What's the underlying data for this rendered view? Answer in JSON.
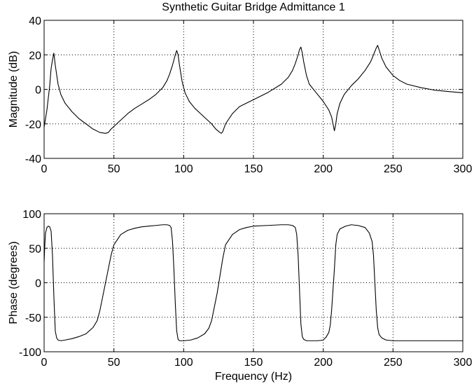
{
  "chart_data": [
    {
      "type": "line",
      "title": "Synthetic Guitar Bridge Admittance 1",
      "xlabel": "",
      "ylabel": "Magnitude (dB)",
      "xlim": [
        0,
        300
      ],
      "ylim": [
        -40,
        40
      ],
      "xticks": [
        "0",
        "50",
        "100",
        "150",
        "200",
        "250",
        "300"
      ],
      "yticks": [
        "-40",
        "-20",
        "0",
        "20",
        "40"
      ],
      "grid": true,
      "series": [
        {
          "x": [
            0,
            2,
            4,
            5,
            6,
            7,
            8,
            10,
            12,
            15,
            20,
            25,
            30,
            35,
            40,
            44,
            46,
            48,
            52,
            56,
            60,
            65,
            70,
            75,
            80,
            85,
            88,
            90,
            92,
            94,
            95,
            96,
            97,
            99,
            101,
            104,
            108,
            112,
            116,
            120,
            123,
            126,
            127,
            128,
            130,
            135,
            140,
            150,
            160,
            170,
            175,
            178,
            180,
            182,
            183,
            184,
            185,
            186,
            188,
            190,
            195,
            200,
            204,
            206,
            207,
            208,
            209,
            210,
            212,
            215,
            220,
            225,
            230,
            234,
            236,
            238,
            239,
            240,
            242,
            245,
            250,
            255,
            260,
            270,
            280,
            290,
            300
          ],
          "y": [
            -22,
            -12,
            2,
            12,
            17,
            21,
            14,
            3,
            -3,
            -8,
            -13,
            -17,
            -20,
            -23,
            -25,
            -25.5,
            -25,
            -23,
            -20,
            -17,
            -14,
            -11,
            -8.5,
            -6,
            -3,
            1,
            5,
            9,
            14,
            20,
            22.5,
            20,
            14,
            4,
            -2,
            -7,
            -11,
            -14,
            -17,
            -20,
            -23,
            -25,
            -25.5,
            -24.5,
            -20,
            -14,
            -10,
            -6,
            -2,
            3,
            7,
            11,
            15,
            20,
            23,
            24.5,
            21,
            16,
            8,
            3,
            -2,
            -7,
            -12,
            -16,
            -20,
            -24,
            -20,
            -14,
            -8,
            -3,
            2,
            6,
            11,
            16,
            20,
            24,
            25.5,
            23,
            18,
            13,
            8,
            5,
            3,
            1,
            -0.5,
            -1.3,
            -2
          ]
        }
      ]
    },
    {
      "type": "line",
      "title": "",
      "xlabel": "Frequency (Hz)",
      "ylabel": "Phase (degrees)",
      "xlim": [
        0,
        300
      ],
      "ylim": [
        -100,
        100
      ],
      "xticks": [
        "0",
        "50",
        "100",
        "150",
        "200",
        "250",
        "300"
      ],
      "yticks": [
        "-100",
        "-50",
        "0",
        "50",
        "100"
      ],
      "grid": true,
      "series": [
        {
          "x": [
            0,
            0.5,
            1,
            2,
            3,
            4,
            5,
            6,
            7,
            8,
            9,
            10,
            12,
            15,
            20,
            25,
            30,
            35,
            38,
            40,
            42,
            44,
            46,
            48,
            50,
            55,
            60,
            65,
            70,
            75,
            80,
            85,
            88,
            90,
            91,
            92,
            93,
            94,
            95,
            96,
            97,
            98,
            100,
            105,
            110,
            115,
            118,
            120,
            122,
            124,
            126,
            128,
            130,
            135,
            140,
            145,
            150,
            160,
            170,
            175,
            178,
            180,
            181,
            182,
            183,
            184,
            185,
            186,
            188,
            192,
            196,
            200,
            202,
            204,
            205,
            206,
            207,
            208,
            209,
            210,
            212,
            216,
            220,
            225,
            230,
            233,
            235,
            236,
            237,
            238,
            239,
            240,
            242,
            245,
            250,
            255,
            260,
            270,
            280,
            290,
            300
          ],
          "y": [
            30,
            55,
            72,
            80,
            82,
            81,
            75,
            40,
            -20,
            -70,
            -80,
            -83,
            -84,
            -83,
            -81,
            -78,
            -74,
            -65,
            -55,
            -40,
            -20,
            0,
            20,
            40,
            55,
            70,
            76,
            79,
            81,
            82,
            83,
            84,
            84,
            83,
            80,
            60,
            20,
            -30,
            -70,
            -82,
            -84,
            -84,
            -84,
            -83,
            -80,
            -74,
            -66,
            -55,
            -35,
            -15,
            10,
            35,
            55,
            70,
            77,
            80,
            82,
            83,
            84,
            84,
            83,
            80,
            70,
            40,
            -10,
            -60,
            -78,
            -82,
            -84,
            -84,
            -84,
            -83,
            -79,
            -72,
            -62,
            -40,
            -10,
            20,
            55,
            70,
            78,
            82,
            84,
            83,
            80,
            72,
            60,
            40,
            0,
            -40,
            -65,
            -75,
            -80,
            -83,
            -84,
            -84,
            -84,
            -84,
            -84,
            -84,
            -84
          ]
        }
      ]
    }
  ]
}
